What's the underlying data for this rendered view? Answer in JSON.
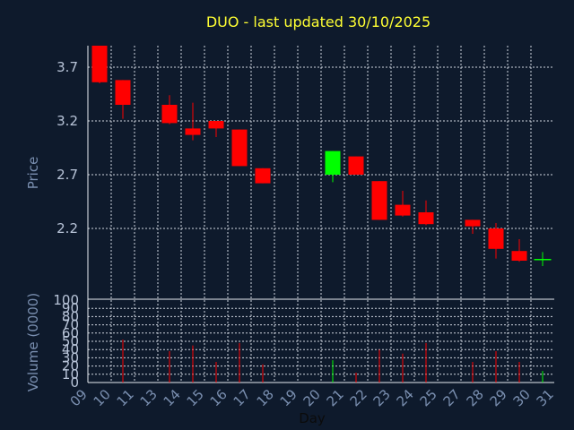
{
  "chart_data": {
    "type": "candlestick",
    "title": "DUO - last updated 30/10/2025",
    "price_axis": {
      "label": "Price",
      "ylim": [
        1.55,
        3.9
      ],
      "ticks": [
        2.2,
        2.7,
        3.2,
        3.7
      ]
    },
    "volume_axis": {
      "label": "Volume (0000)",
      "ylim": [
        0,
        100
      ],
      "ticks": [
        0,
        10,
        20,
        30,
        40,
        50,
        60,
        70,
        80,
        90,
        100
      ]
    },
    "x_axis": {
      "label": "Day",
      "tick_labels": [
        "09",
        "10",
        "11",
        "13",
        "14",
        "15",
        "16",
        "17",
        "18",
        "19",
        "20",
        "21",
        "22",
        "23",
        "24",
        "25",
        "27",
        "28",
        "29",
        "30",
        "31"
      ]
    },
    "grid": true,
    "colors": {
      "up": "#00ff00",
      "down": "#ff0000",
      "background": "#0e1a2c",
      "title": "#ffff33"
    },
    "candles": [
      {
        "day": "09",
        "open": 3.9,
        "high": 3.9,
        "low": 3.55,
        "close": 3.56,
        "volume": 0
      },
      {
        "day": "10",
        "open": 3.58,
        "high": 3.58,
        "low": 3.22,
        "close": 3.35,
        "volume": 52
      },
      {
        "day": "13",
        "open": 3.35,
        "high": 3.44,
        "low": 3.17,
        "close": 3.18,
        "volume": 38
      },
      {
        "day": "14",
        "open": 3.13,
        "high": 3.37,
        "low": 3.02,
        "close": 3.07,
        "volume": 45
      },
      {
        "day": "15",
        "open": 3.2,
        "high": 3.2,
        "low": 3.05,
        "close": 3.13,
        "volume": 25
      },
      {
        "day": "16",
        "open": 3.12,
        "high": 3.12,
        "low": 2.78,
        "close": 2.78,
        "volume": 48
      },
      {
        "day": "17",
        "open": 2.76,
        "high": 2.76,
        "low": 2.62,
        "close": 2.62,
        "volume": 22
      },
      {
        "day": "20",
        "open": 2.7,
        "high": 2.92,
        "low": 2.63,
        "close": 2.92,
        "volume": 27
      },
      {
        "day": "21",
        "open": 2.87,
        "high": 2.87,
        "low": 2.7,
        "close": 2.7,
        "volume": 12
      },
      {
        "day": "22",
        "open": 2.64,
        "high": 2.64,
        "low": 2.28,
        "close": 2.28,
        "volume": 40
      },
      {
        "day": "23",
        "open": 2.42,
        "high": 2.55,
        "low": 2.31,
        "close": 2.32,
        "volume": 35
      },
      {
        "day": "24",
        "open": 2.35,
        "high": 2.46,
        "low": 2.23,
        "close": 2.24,
        "volume": 48
      },
      {
        "day": "27",
        "open": 2.28,
        "high": 2.28,
        "low": 2.15,
        "close": 2.22,
        "volume": 25
      },
      {
        "day": "28",
        "open": 2.2,
        "high": 2.25,
        "low": 1.92,
        "close": 2.01,
        "volume": 38
      },
      {
        "day": "29",
        "open": 1.99,
        "high": 2.1,
        "low": 1.89,
        "close": 1.9,
        "volume": 25
      },
      {
        "day": "30",
        "open": 1.91,
        "high": 1.98,
        "low": 1.85,
        "close": 1.91,
        "volume": 14
      }
    ]
  }
}
